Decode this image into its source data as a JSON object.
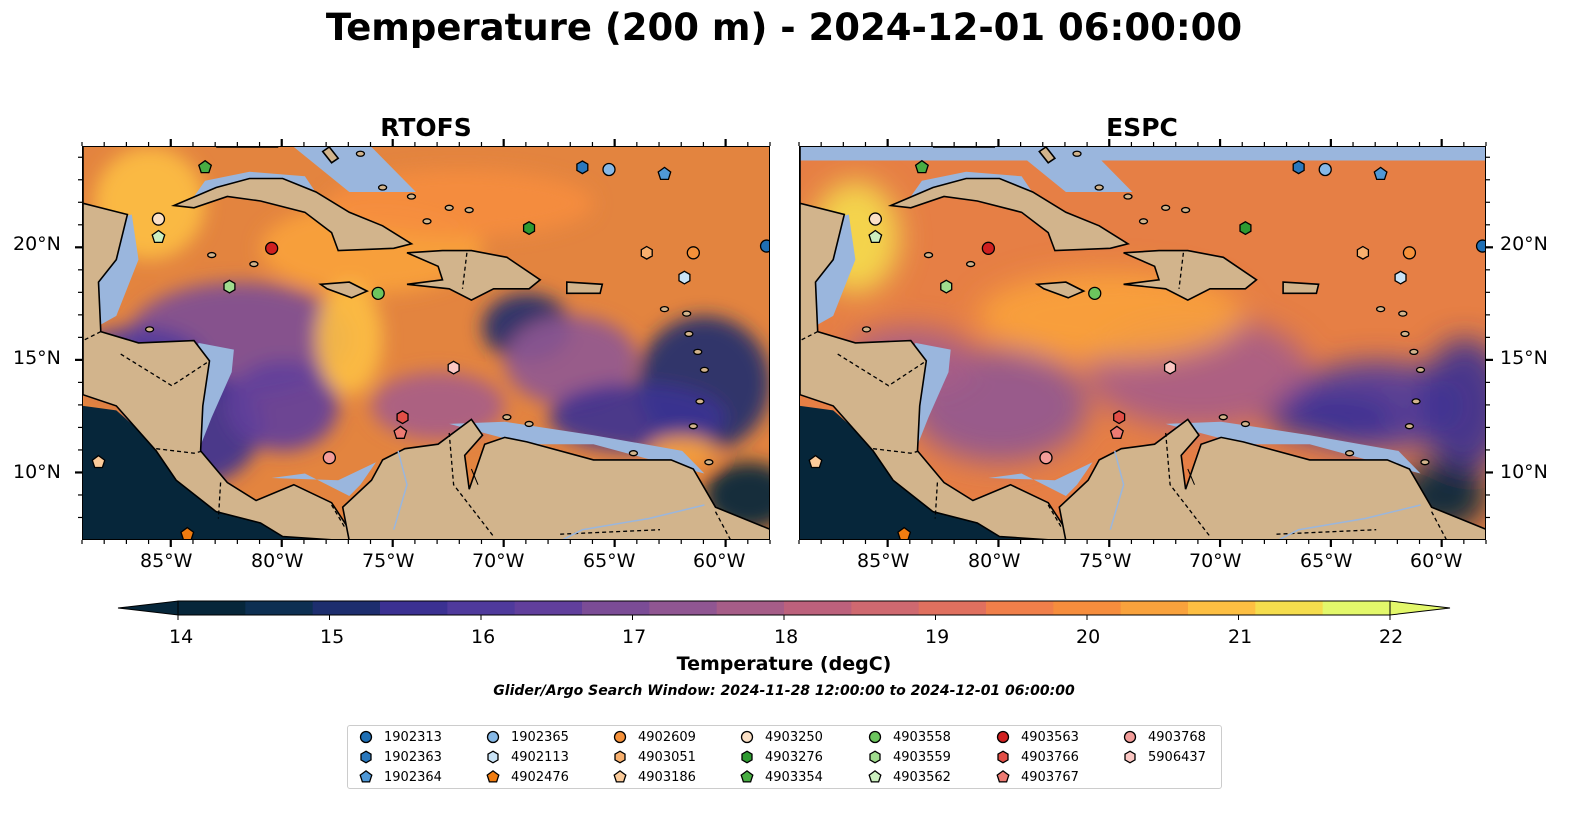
{
  "title": "Temperature (200 m) - 2024-12-01 06:00:00",
  "panels": [
    {
      "title": "RTOFS"
    },
    {
      "title": "ESPC"
    }
  ],
  "axes": {
    "lon_ticks": [
      "85°W",
      "80°W",
      "75°W",
      "70°W",
      "65°W",
      "60°W"
    ],
    "lat_ticks": [
      "20°N",
      "15°N",
      "10°N"
    ]
  },
  "colorbar": {
    "label": "Temperature (degC)",
    "min": 14,
    "max": 22,
    "ticks": [
      "14",
      "15",
      "16",
      "17",
      "18",
      "19",
      "20",
      "21",
      "22"
    ],
    "colors": [
      "#06263a",
      "#0d2f52",
      "#1d2e6e",
      "#3b3192",
      "#4f3a9c",
      "#613f9c",
      "#7b4c96",
      "#905692",
      "#a65d88",
      "#bc617c",
      "#cf6970",
      "#e0705f",
      "#f07f4a",
      "#f68d3d",
      "#f9a23c",
      "#fdbf42",
      "#f5dd4d",
      "#e3f86b"
    ]
  },
  "search_window": "Glider/Argo Search Window: 2024-11-28 12:00:00 to 2024-12-01 06:00:00",
  "legend": [
    {
      "id": "1902313",
      "marker": "circle",
      "color": "#1f6fb4"
    },
    {
      "id": "1902363",
      "marker": "hexagon",
      "color": "#2a78bd"
    },
    {
      "id": "1902364",
      "marker": "pentagon",
      "color": "#4f98d6"
    },
    {
      "id": "1902365",
      "marker": "circle",
      "color": "#86b8e6"
    },
    {
      "id": "4902113",
      "marker": "hexagon",
      "color": "#cae4f7"
    },
    {
      "id": "4902476",
      "marker": "pentagon",
      "color": "#f07c10"
    },
    {
      "id": "4902609",
      "marker": "circle",
      "color": "#f5913a"
    },
    {
      "id": "4903051",
      "marker": "hexagon",
      "color": "#f8b06e"
    },
    {
      "id": "4903186",
      "marker": "pentagon",
      "color": "#fbcb9a"
    },
    {
      "id": "4903250",
      "marker": "circle",
      "color": "#fbe0c6"
    },
    {
      "id": "4903276",
      "marker": "hexagon",
      "color": "#2e9a31"
    },
    {
      "id": "4903354",
      "marker": "pentagon",
      "color": "#48ad43"
    },
    {
      "id": "4903558",
      "marker": "circle",
      "color": "#6cc55e"
    },
    {
      "id": "4903559",
      "marker": "hexagon",
      "color": "#a0dc8e"
    },
    {
      "id": "4903562",
      "marker": "pentagon",
      "color": "#ccefbf"
    },
    {
      "id": "4903563",
      "marker": "circle",
      "color": "#d02020"
    },
    {
      "id": "4903766",
      "marker": "hexagon",
      "color": "#e14f47"
    },
    {
      "id": "4903767",
      "marker": "pentagon",
      "color": "#ed7b73"
    },
    {
      "id": "4903768",
      "marker": "circle",
      "color": "#f39d9a"
    },
    {
      "id": "5906437",
      "marker": "hexagon",
      "color": "#fbc7c3"
    }
  ],
  "map_extent": {
    "lon": [
      -89,
      -58
    ],
    "lat": [
      7,
      24.5
    ]
  },
  "platform_positions": [
    {
      "id": "1902313",
      "lon": -58.2,
      "lat": 20.1
    },
    {
      "id": "1902363",
      "lon": -66.5,
      "lat": 23.6
    },
    {
      "id": "1902364",
      "lon": -62.8,
      "lat": 23.3
    },
    {
      "id": "1902365",
      "lon": -65.3,
      "lat": 23.5
    },
    {
      "id": "4902113",
      "lon": -61.9,
      "lat": 18.7
    },
    {
      "id": "4902476",
      "lon": -84.3,
      "lat": 7.3
    },
    {
      "id": "4902609",
      "lon": -61.5,
      "lat": 19.8
    },
    {
      "id": "4903051",
      "lon": -63.6,
      "lat": 19.8
    },
    {
      "id": "4903186",
      "lon": -88.3,
      "lat": 10.5
    },
    {
      "id": "4903250",
      "lon": -85.6,
      "lat": 21.3
    },
    {
      "id": "4903276",
      "lon": -68.9,
      "lat": 20.9
    },
    {
      "id": "4903354",
      "lon": -83.5,
      "lat": 23.6
    },
    {
      "id": "4903558",
      "lon": -75.7,
      "lat": 18.0
    },
    {
      "id": "4903559",
      "lon": -82.4,
      "lat": 18.3
    },
    {
      "id": "4903562",
      "lon": -85.6,
      "lat": 20.5
    },
    {
      "id": "4903563",
      "lon": -80.5,
      "lat": 20.0
    },
    {
      "id": "4903766",
      "lon": -74.6,
      "lat": 12.5
    },
    {
      "id": "4903767",
      "lon": -74.7,
      "lat": 11.8
    },
    {
      "id": "4903768",
      "lon": -77.9,
      "lat": 10.7
    },
    {
      "id": "5906437",
      "lon": -72.3,
      "lat": 14.7
    }
  ]
}
